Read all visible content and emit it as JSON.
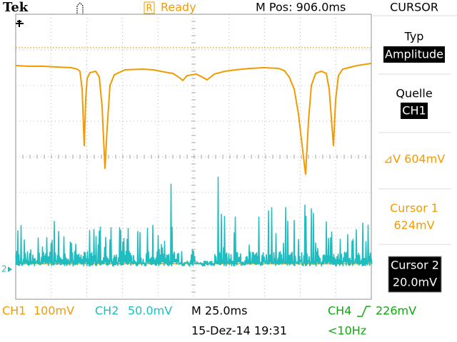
{
  "header": {
    "brand": "Tek",
    "status_icon": "R",
    "status": "Ready",
    "m_pos": "M Pos: 906.0ms",
    "menu": "CURSOR"
  },
  "side_menu": {
    "type_label": "Typ",
    "type_value": "Amplitude",
    "source_label": "Quelle",
    "source_value": "CH1",
    "delta": "⊿V 604mV",
    "cursor1_label": "Cursor 1",
    "cursor1_value": "624mV",
    "cursor2_label": "Cursor 2",
    "cursor2_value": "20.0mV"
  },
  "screen": {
    "ch2_marker": "2"
  },
  "footer": {
    "ch1": "CH1",
    "ch1_scale": "100mV",
    "ch2": "CH2",
    "ch2_scale": "50.0mV",
    "timebase": "M 25.0ms",
    "trigger": "CH4",
    "trigger_level": "226mV",
    "date": "15-Dez-14 19:31",
    "freq": "<10Hz"
  }
}
